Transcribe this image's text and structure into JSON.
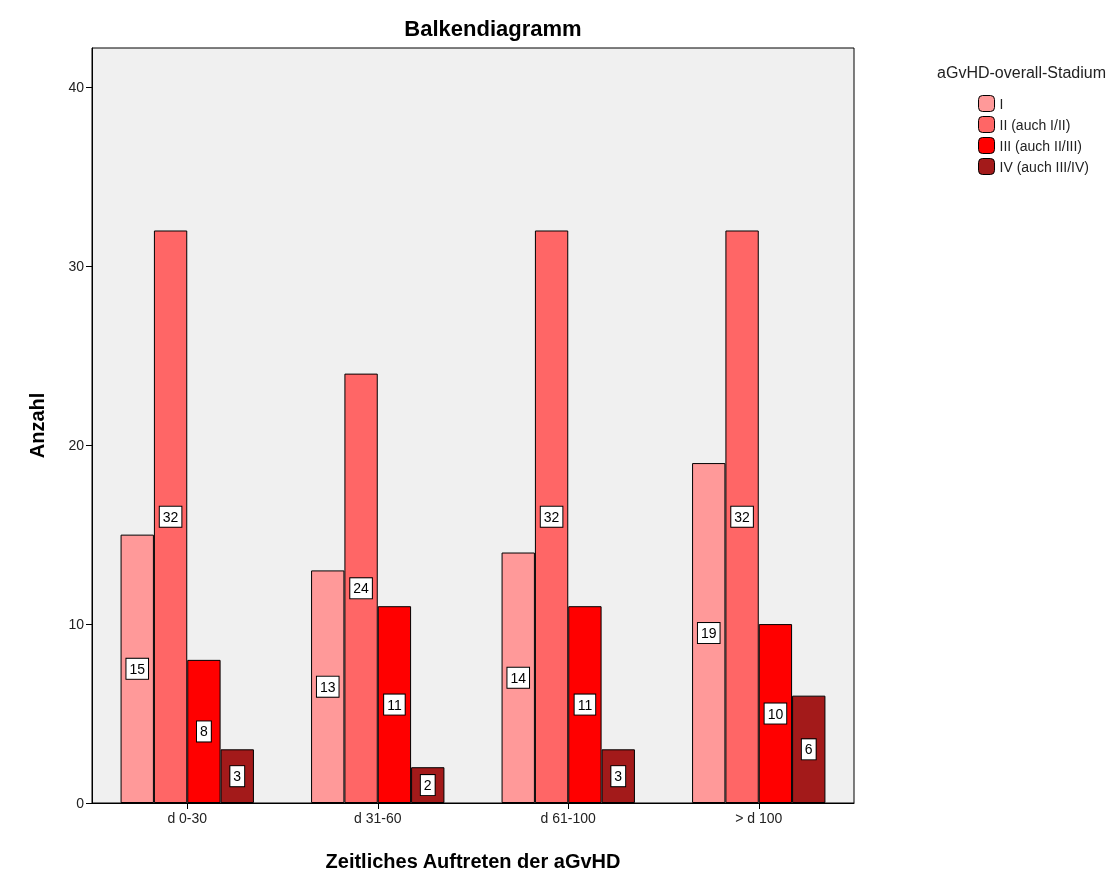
{
  "chart_data": {
    "type": "bar",
    "title": "Balkendiagramm",
    "xlabel": "Zeitliches Auftreten der aGvHD",
    "ylabel": "Anzahl",
    "legend_title": "aGvHD-overall-Stadium",
    "categories": [
      "d 0-30",
      "d 31-60",
      "d 61-100",
      "> d 100"
    ],
    "series": [
      {
        "name": "I",
        "color": "#ff9999",
        "values": [
          15,
          13,
          14,
          19
        ]
      },
      {
        "name": "II (auch I/II)",
        "color": "#ff6666",
        "values": [
          32,
          24,
          32,
          32
        ]
      },
      {
        "name": "III (auch II/III)",
        "color": "#ff0000",
        "values": [
          8,
          11,
          11,
          10
        ]
      },
      {
        "name": "IV (auch III/IV)",
        "color": "#a31a1a",
        "values": [
          3,
          2,
          3,
          6
        ]
      }
    ],
    "ylim": [
      0,
      42.2
    ],
    "yticks": [
      0,
      10,
      20,
      30,
      40
    ],
    "grid": false,
    "legend": "top right",
    "data_labels": true
  }
}
